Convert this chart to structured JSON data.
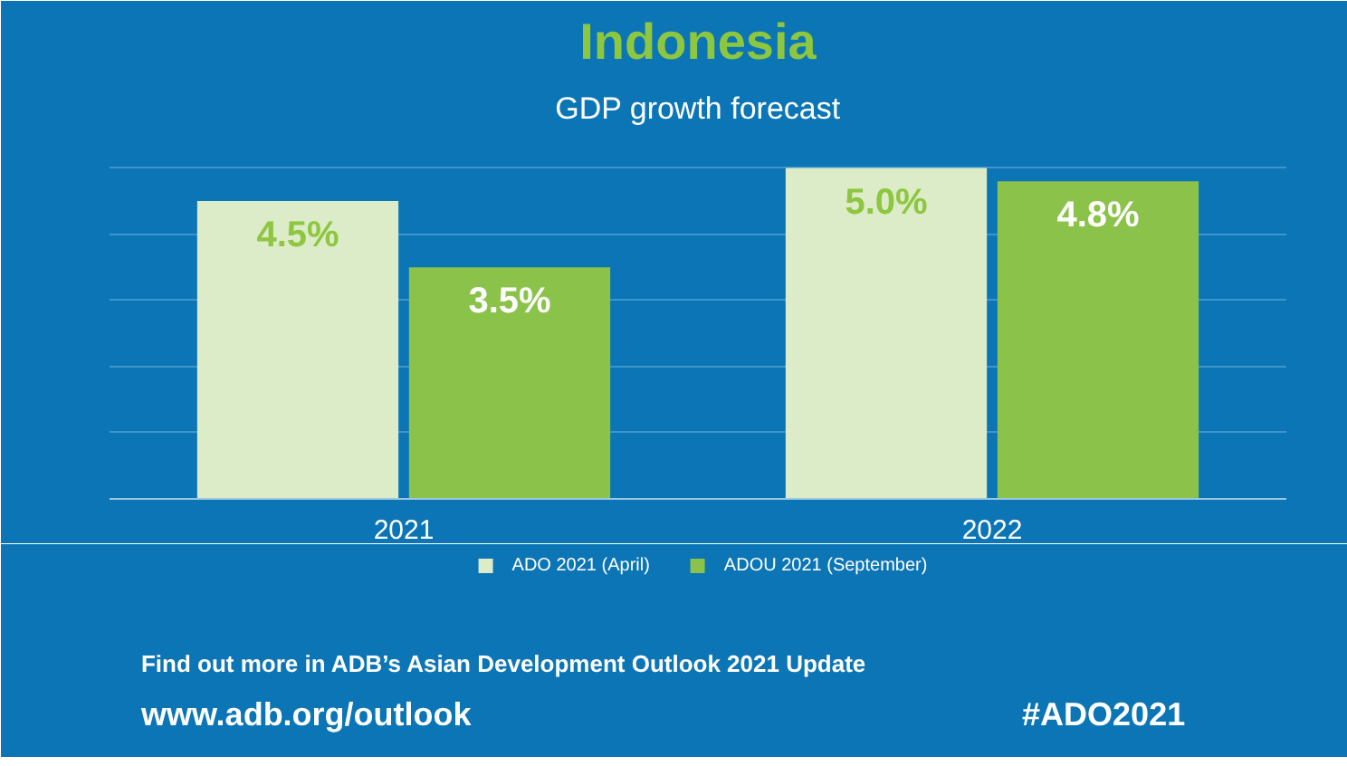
{
  "chart_data": {
    "type": "bar",
    "title": "Indonesia",
    "subtitle": "GDP growth forecast",
    "categories": [
      "2021",
      "2022"
    ],
    "series": [
      {
        "name": "ADO 2021 (April)",
        "color": "#dcebc8",
        "values": [
          4.5,
          5.0
        ],
        "value_labels": [
          "4.5%",
          "5.0%"
        ]
      },
      {
        "name": "ADOU 2021 (September)",
        "color": "#8bc34a",
        "values": [
          3.5,
          4.8
        ],
        "value_labels": [
          "3.5%",
          "4.8%"
        ]
      }
    ],
    "ylim": [
      0,
      5.5
    ],
    "yticks": [
      {
        "value": 0,
        "label": null
      },
      {
        "value": 1,
        "label": null
      },
      {
        "value": 2,
        "label": null
      },
      {
        "value": 3,
        "label": null
      },
      {
        "value": 4,
        "label": null
      },
      {
        "value": 5,
        "label": null
      }
    ],
    "grid": "y",
    "legend": "bottom",
    "tick_labels": "x",
    "annotations": [
      "Find out more in ADB’s Asian Development Outlook 2021 Update",
      "www.adb.org/outlook",
      "#ADO2021"
    ]
  }
}
